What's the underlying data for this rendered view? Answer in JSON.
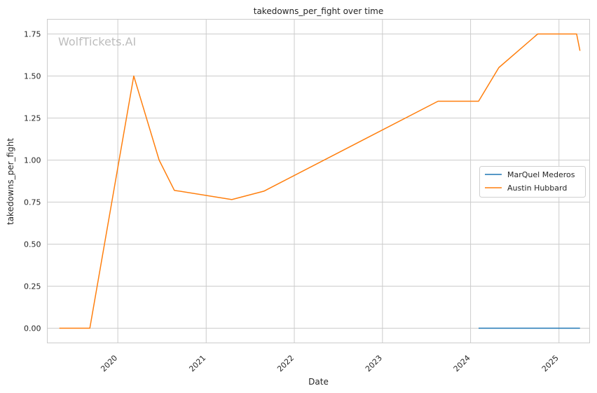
{
  "watermark": "WolfTickets.AI",
  "chart_data": {
    "type": "line",
    "title": "takedowns_per_fight over time",
    "xlabel": "Date",
    "ylabel": "takedowns_per_fight",
    "x_ticks": [
      "2020",
      "2021",
      "2022",
      "2023",
      "2024",
      "2025"
    ],
    "y_ticks": [
      "0.00",
      "0.25",
      "0.50",
      "0.75",
      "1.00",
      "1.25",
      "1.50",
      "1.75"
    ],
    "xlim": [
      "2019-03-15",
      "2025-05-08"
    ],
    "ylim": [
      -0.0875,
      1.8375
    ],
    "grid": true,
    "legend": "center-right",
    "series": [
      {
        "name": "MarQuel Mederos",
        "color": "#1f77b4",
        "points": [
          [
            "2024-02-03",
            0.0
          ],
          [
            "2025-03-29",
            0.0
          ]
        ]
      },
      {
        "name": "Austin Hubbard",
        "color": "#ff7f0e",
        "points": [
          [
            "2019-05-04",
            0.0
          ],
          [
            "2019-09-07",
            0.0
          ],
          [
            "2020-03-07",
            1.5
          ],
          [
            "2020-06-20",
            1.0
          ],
          [
            "2020-08-22",
            0.82
          ],
          [
            "2021-04-17",
            0.765
          ],
          [
            "2021-08-28",
            0.815
          ],
          [
            "2023-08-19",
            1.35
          ],
          [
            "2024-02-03",
            1.35
          ],
          [
            "2024-04-27",
            1.55
          ],
          [
            "2024-10-05",
            1.75
          ],
          [
            "2025-03-15",
            1.75
          ],
          [
            "2025-03-29",
            1.65
          ]
        ]
      }
    ]
  }
}
